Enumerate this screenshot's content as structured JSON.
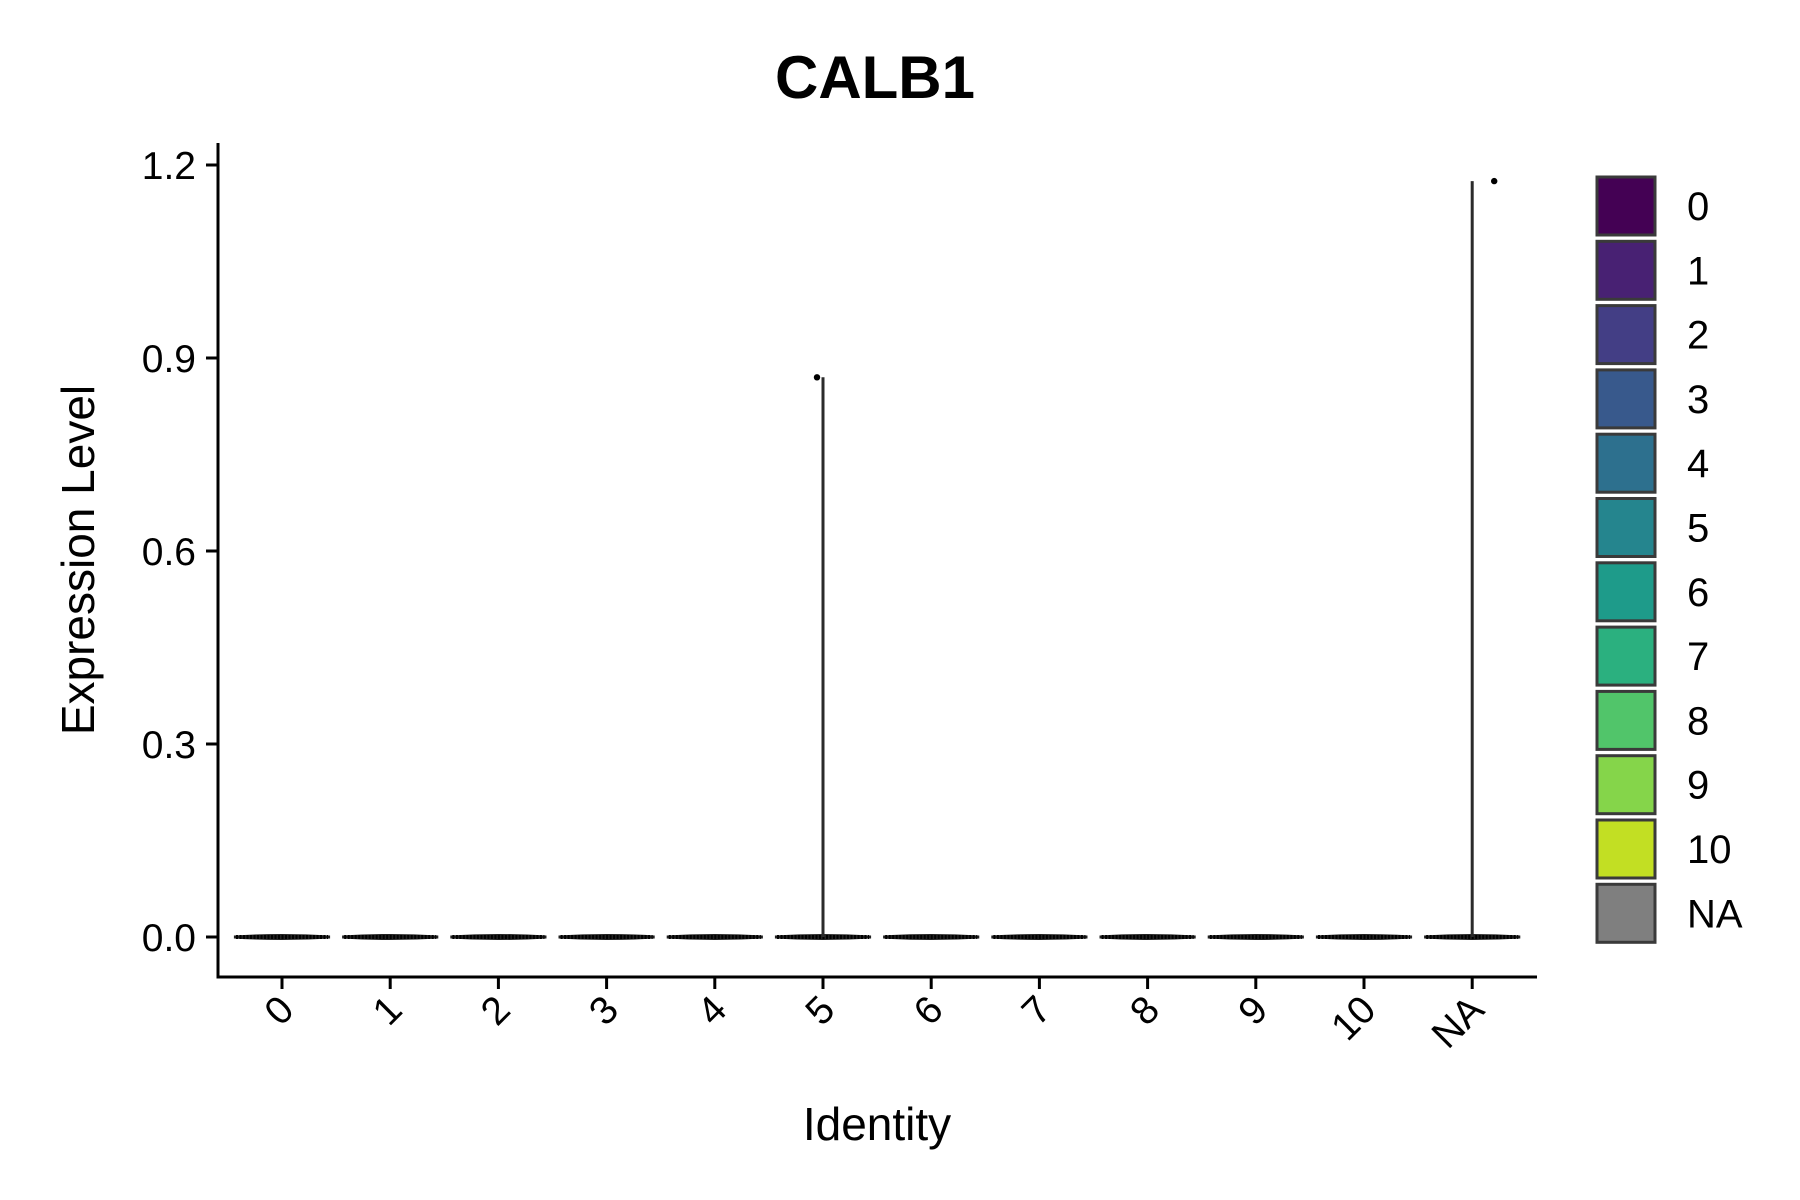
{
  "chart_data": {
    "type": "violin",
    "title": "CALB1",
    "xlabel": "Identity",
    "ylabel": "Expression Level",
    "categories": [
      "0",
      "1",
      "2",
      "3",
      "4",
      "5",
      "6",
      "7",
      "8",
      "9",
      "10",
      "NA"
    ],
    "ylim": [
      -0.05,
      1.25
    ],
    "y_ticks": [
      0.0,
      0.3,
      0.6,
      0.9,
      1.2
    ],
    "y_tick_labels": [
      "0.0",
      "0.3",
      "0.6",
      "0.9",
      "1.2"
    ],
    "max_values": [
      0,
      0,
      0,
      0,
      0,
      0.87,
      0,
      0,
      0,
      0,
      0,
      1.175
    ],
    "outlier_points": [
      {
        "category": "5",
        "y": 0.87
      },
      {
        "category": "NA",
        "y": 1.175
      }
    ],
    "legend": {
      "placement": "right",
      "entries": [
        {
          "label": "0",
          "color": "#440154"
        },
        {
          "label": "1",
          "color": "#482173"
        },
        {
          "label": "2",
          "color": "#433E85"
        },
        {
          "label": "3",
          "color": "#38598C"
        },
        {
          "label": "4",
          "color": "#2D708E"
        },
        {
          "label": "5",
          "color": "#25858E"
        },
        {
          "label": "6",
          "color": "#1E9B8A"
        },
        {
          "label": "7",
          "color": "#2BB07F"
        },
        {
          "label": "8",
          "color": "#51C56A"
        },
        {
          "label": "9",
          "color": "#85D54A"
        },
        {
          "label": "10",
          "color": "#C2DF23"
        },
        {
          "label": "NA",
          "color": "#7F7F7F"
        }
      ]
    },
    "grid": false
  }
}
